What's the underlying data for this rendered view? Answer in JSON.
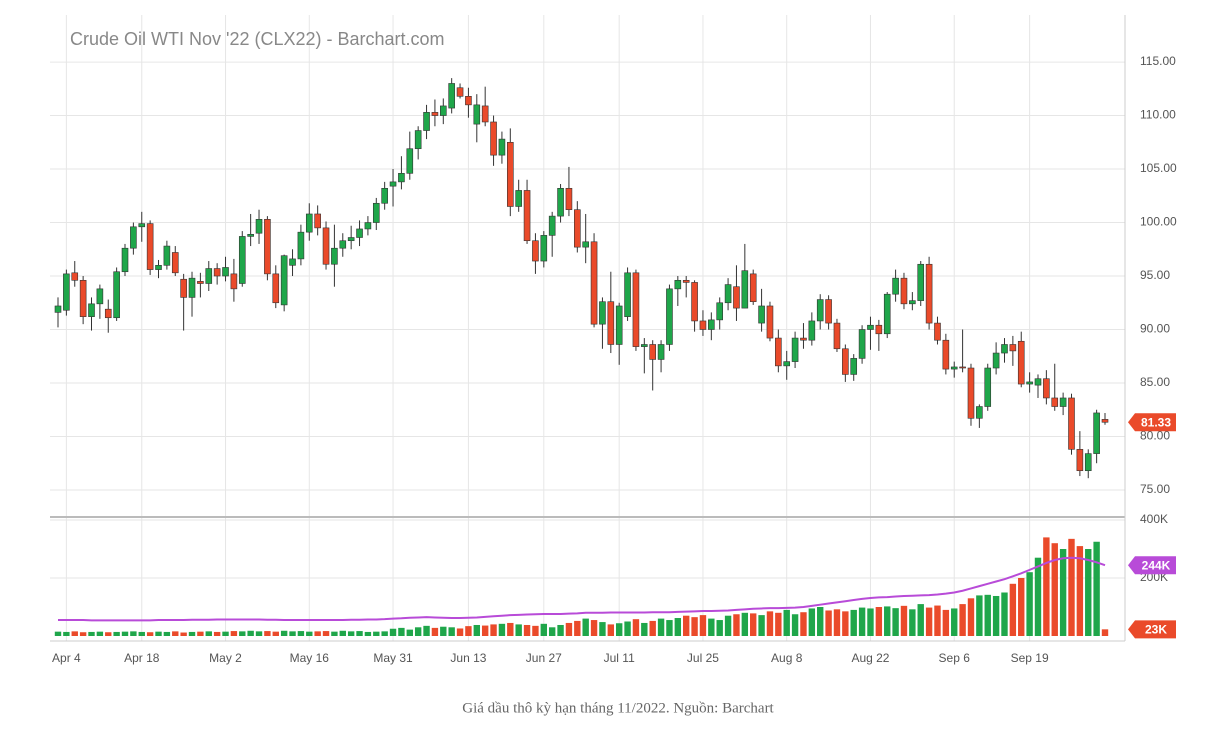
{
  "chart_data": {
    "type": "candlestick",
    "title": "Crude Oil WTI Nov '22 (CLX22) - Barchart.com",
    "caption": "Giá dầu thô kỳ hạn tháng 11/2022. Nguồn: Barchart",
    "categories": [
      null,
      "Apr 4",
      null,
      null,
      null,
      null,
      null,
      null,
      null,
      null,
      "Apr 18",
      null,
      null,
      null,
      null,
      null,
      null,
      null,
      null,
      null,
      "May 2",
      null,
      null,
      null,
      null,
      null,
      null,
      null,
      null,
      null,
      "May 16",
      null,
      null,
      null,
      null,
      null,
      null,
      null,
      null,
      null,
      "May 31",
      null,
      null,
      null,
      null,
      null,
      null,
      null,
      null,
      "Jun 13",
      null,
      null,
      null,
      null,
      null,
      null,
      null,
      null,
      "Jun 27",
      null,
      null,
      null,
      null,
      null,
      null,
      null,
      null,
      "Jul 11",
      null,
      null,
      null,
      null,
      null,
      null,
      null,
      null,
      null,
      "Jul 25",
      null,
      null,
      null,
      null,
      null,
      null,
      null,
      null,
      null,
      "Aug 8",
      null,
      null,
      null,
      null,
      null,
      null,
      null,
      null,
      null,
      "Aug 22",
      null,
      null,
      null,
      null,
      null,
      null,
      null,
      null,
      null,
      "Sep 6",
      null,
      null,
      null,
      null,
      null,
      null,
      null,
      null,
      "Sep 19",
      null,
      null,
      null,
      null,
      null,
      null,
      null,
      null,
      null
    ],
    "open": [
      91.6,
      91.8,
      95.3,
      94.6,
      91.2,
      92.4,
      91.9,
      91.1,
      95.4,
      97.6,
      99.6,
      99.9,
      95.6,
      96.0,
      97.2,
      94.7,
      93.0,
      94.5,
      94.3,
      95.7,
      95.0,
      95.2,
      94.3,
      98.7,
      99.0,
      100.3,
      95.2,
      92.3,
      96.0,
      96.6,
      99.1,
      100.8,
      99.5,
      96.1,
      97.6,
      98.3,
      98.6,
      99.4,
      100.0,
      101.8,
      103.4,
      103.8,
      104.6,
      106.9,
      108.6,
      110.3,
      110.0,
      110.7,
      112.6,
      111.8,
      109.2,
      110.9,
      109.4,
      106.3,
      107.5,
      101.5,
      103.0,
      98.3,
      96.4,
      98.8,
      100.6,
      103.2,
      101.2,
      97.7,
      98.2,
      90.5,
      92.6,
      88.6,
      91.2,
      95.3,
      88.4,
      88.6,
      87.2,
      88.6,
      93.8,
      94.6,
      94.4,
      90.8,
      90.0,
      90.9,
      92.5,
      94.0,
      92.0,
      95.2,
      90.6,
      92.2,
      89.2,
      86.6,
      87.0,
      89.2,
      89.0,
      90.8,
      92.8,
      90.6,
      88.2,
      85.8,
      87.3,
      90.0,
      90.4,
      89.6,
      93.3,
      94.8,
      92.4,
      92.7,
      96.1,
      90.6,
      89.0,
      86.3,
      86.5,
      86.4,
      81.7,
      82.8,
      86.4,
      87.8,
      88.6,
      88.9,
      84.9,
      84.8,
      85.4,
      83.6,
      82.8,
      83.6,
      78.8,
      76.8,
      78.4,
      81.6
    ],
    "high": [
      93.0,
      95.6,
      96.4,
      95.0,
      93.0,
      94.2,
      92.8,
      95.8,
      98.0,
      100.0,
      101.0,
      100.2,
      96.5,
      98.3,
      97.8,
      95.2,
      95.4,
      95.3,
      96.4,
      96.2,
      96.8,
      96.6,
      99.2,
      100.8,
      101.2,
      100.6,
      96.0,
      97.0,
      97.5,
      99.8,
      101.8,
      101.6,
      100.1,
      99.8,
      99.0,
      99.7,
      100.2,
      100.6,
      102.3,
      103.8,
      105.0,
      106.2,
      108.5,
      109.0,
      111.0,
      111.5,
      111.6,
      113.5,
      113.0,
      112.6,
      112.0,
      112.7,
      110.0,
      108.5,
      108.8,
      104.0,
      104.0,
      99.0,
      99.2,
      101.0,
      103.6,
      105.2,
      102.0,
      100.8,
      99.0,
      93.0,
      95.4,
      92.5,
      95.8,
      95.6,
      89.2,
      89.0,
      89.0,
      94.2,
      95.0,
      95.0,
      94.6,
      91.8,
      91.6,
      93.0,
      94.8,
      96.0,
      98.0,
      95.6,
      93.8,
      92.6,
      90.0,
      88.0,
      89.8,
      90.6,
      91.6,
      93.3,
      93.2,
      91.0,
      88.6,
      87.7,
      90.4,
      91.2,
      90.9,
      93.5,
      95.6,
      95.3,
      93.5,
      96.4,
      96.8,
      91.2,
      89.6,
      87.0,
      90.0,
      86.8,
      83.0,
      86.8,
      88.8,
      89.2,
      89.4,
      89.8,
      86.0,
      85.8,
      86.2,
      86.8,
      84.1,
      84.0,
      80.5,
      78.8,
      82.5,
      82.2
    ],
    "low": [
      90.2,
      91.3,
      94.0,
      90.5,
      89.9,
      91.0,
      89.7,
      90.8,
      95.0,
      97.0,
      98.2,
      95.1,
      94.8,
      95.6,
      95.0,
      89.9,
      91.2,
      93.0,
      93.6,
      94.2,
      94.5,
      92.6,
      94.0,
      97.8,
      98.0,
      94.6,
      92.0,
      91.7,
      95.0,
      96.0,
      98.3,
      98.8,
      95.6,
      94.0,
      96.8,
      97.5,
      97.8,
      98.8,
      99.3,
      101.2,
      101.5,
      103.1,
      104.0,
      105.9,
      107.8,
      109.0,
      109.2,
      110.2,
      111.6,
      109.8,
      107.5,
      109.0,
      105.3,
      105.5,
      100.6,
      101.0,
      98.0,
      95.2,
      95.8,
      96.8,
      100.0,
      100.6,
      97.2,
      96.2,
      90.2,
      88.2,
      87.8,
      86.7,
      90.8,
      88.0,
      85.9,
      84.3,
      86.0,
      88.0,
      92.2,
      93.0,
      89.8,
      89.4,
      89.0,
      90.0,
      91.8,
      90.8,
      92.0,
      92.3,
      89.8,
      88.9,
      86.0,
      85.3,
      86.4,
      88.2,
      88.5,
      90.0,
      90.0,
      87.9,
      85.1,
      85.2,
      86.8,
      88.1,
      88.0,
      89.2,
      92.6,
      91.9,
      91.8,
      92.2,
      90.0,
      88.6,
      85.8,
      85.5,
      86.0,
      81.0,
      80.8,
      82.4,
      85.8,
      86.9,
      86.6,
      84.6,
      84.1,
      83.6,
      83.0,
      82.4,
      82.0,
      78.3,
      76.3,
      76.1,
      77.5,
      81.1
    ],
    "close": [
      92.2,
      95.2,
      94.6,
      91.2,
      92.4,
      93.8,
      91.1,
      95.4,
      97.6,
      99.6,
      99.9,
      95.6,
      96.0,
      97.8,
      95.3,
      93.0,
      94.8,
      94.3,
      95.7,
      95.0,
      95.8,
      93.8,
      98.7,
      98.9,
      100.3,
      95.2,
      92.5,
      96.9,
      96.6,
      99.1,
      100.8,
      99.5,
      96.1,
      97.6,
      98.3,
      98.6,
      99.4,
      100.0,
      101.8,
      103.2,
      103.8,
      104.6,
      106.9,
      108.6,
      110.3,
      110.0,
      110.9,
      113.0,
      111.8,
      111.0,
      111.0,
      109.4,
      106.3,
      107.8,
      101.5,
      103.0,
      98.3,
      96.4,
      98.8,
      100.6,
      103.2,
      101.2,
      97.7,
      98.2,
      90.5,
      92.6,
      88.6,
      92.2,
      95.3,
      88.4,
      88.6,
      87.2,
      88.6,
      93.8,
      94.6,
      94.4,
      90.8,
      90.0,
      90.9,
      92.5,
      94.2,
      92.0,
      95.5,
      92.6,
      92.2,
      89.2,
      86.6,
      87.0,
      89.2,
      89.0,
      90.8,
      92.8,
      90.6,
      88.2,
      85.8,
      87.3,
      90.0,
      90.4,
      89.6,
      93.3,
      94.8,
      92.4,
      92.7,
      96.1,
      90.6,
      89.0,
      86.3,
      86.5,
      86.4,
      81.7,
      82.8,
      86.4,
      87.8,
      88.6,
      88.0,
      84.9,
      85.1,
      85.4,
      83.6,
      82.8,
      83.6,
      78.8,
      76.8,
      78.4,
      82.2,
      81.33
    ],
    "volume": [
      15000,
      14000,
      16000,
      13000,
      14000,
      15000,
      13000,
      14000,
      15000,
      16000,
      14000,
      13000,
      15000,
      14000,
      16000,
      12000,
      14000,
      15000,
      16000,
      14000,
      15000,
      17000,
      16000,
      18000,
      16000,
      17000,
      15000,
      18000,
      16000,
      17000,
      15000,
      16000,
      17000,
      15000,
      18000,
      16000,
      17000,
      14000,
      15000,
      16000,
      25000,
      28000,
      22000,
      30000,
      35000,
      28000,
      32000,
      30000,
      26000,
      34000,
      38000,
      36000,
      40000,
      42000,
      45000,
      40000,
      38000,
      35000,
      42000,
      30000,
      38000,
      45000,
      52000,
      60000,
      55000,
      48000,
      40000,
      44000,
      50000,
      58000,
      45000,
      52000,
      60000,
      55000,
      62000,
      70000,
      65000,
      72000,
      60000,
      55000,
      70000,
      75000,
      80000,
      78000,
      72000,
      85000,
      80000,
      90000,
      75000,
      82000,
      95000,
      100000,
      88000,
      92000,
      85000,
      90000,
      98000,
      95000,
      100000,
      102000,
      96000,
      104000,
      92000,
      110000,
      98000,
      105000,
      90000,
      95000,
      110000,
      130000,
      140000,
      142000,
      138000,
      150000,
      180000,
      200000,
      220000,
      270000,
      340000,
      320000,
      300000,
      335000,
      310000,
      300000,
      325000,
      23000
    ],
    "volume_ma": [
      55000,
      55000,
      55000,
      55000,
      54000,
      54000,
      54000,
      54000,
      54000,
      54000,
      54000,
      54000,
      55000,
      55000,
      55000,
      55000,
      56000,
      56000,
      56000,
      57000,
      57000,
      57000,
      57000,
      57000,
      57000,
      56000,
      56000,
      55000,
      55000,
      55000,
      55000,
      55000,
      55000,
      55000,
      55000,
      56000,
      56000,
      57000,
      57000,
      58000,
      60000,
      61000,
      63000,
      64000,
      65000,
      64000,
      63000,
      62000,
      62000,
      63000,
      64000,
      66000,
      68000,
      70000,
      72000,
      73000,
      74000,
      75000,
      76000,
      76000,
      76000,
      77000,
      78000,
      80000,
      80000,
      80000,
      81000,
      81000,
      81000,
      81000,
      81000,
      82000,
      82000,
      82000,
      83000,
      84000,
      85000,
      86000,
      86000,
      87000,
      88000,
      90000,
      92000,
      94000,
      95000,
      96000,
      96000,
      97000,
      98000,
      100000,
      104000,
      108000,
      112000,
      116000,
      120000,
      124000,
      128000,
      131000,
      133000,
      134000,
      136000,
      138000,
      139000,
      140000,
      141000,
      143000,
      146000,
      150000,
      156000,
      164000,
      172000,
      180000,
      188000,
      196000,
      206000,
      216000,
      228000,
      240000,
      252000,
      262000,
      268000,
      270000,
      268000,
      262000,
      254000,
      244000
    ],
    "volume_ma_last_label": "244K",
    "volume_last_label": "23K",
    "up_color": "#1fa64a",
    "down_color": "#ea4a2a",
    "ma_color": "#b84bd8",
    "ylim": [
      72.66,
      119.4
    ],
    "yticks": [
      {
        "value": 75,
        "label": "75.00"
      },
      {
        "value": 80,
        "label": "80.00"
      },
      {
        "value": 85,
        "label": "85.00"
      },
      {
        "value": 90,
        "label": "90.00"
      },
      {
        "value": 95,
        "label": "95.00"
      },
      {
        "value": 100,
        "label": "100.00"
      },
      {
        "value": 105,
        "label": "105.00"
      },
      {
        "value": 110,
        "label": "110.00"
      },
      {
        "value": 115,
        "label": "115.00"
      }
    ],
    "y2lim": [
      0,
      400000
    ],
    "y2ticks": [
      {
        "value": 200000,
        "label": "200K"
      },
      {
        "value": 400000,
        "label": "400K"
      }
    ],
    "grid": true
  }
}
